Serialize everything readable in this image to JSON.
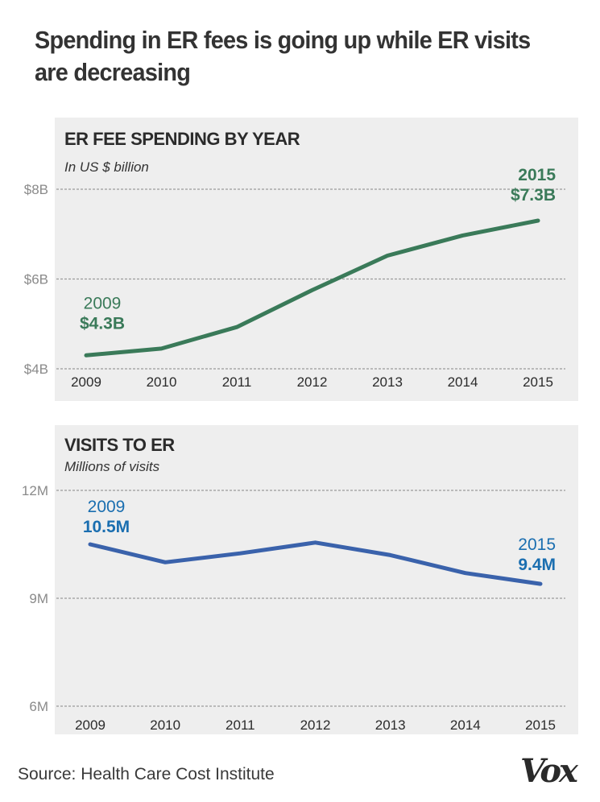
{
  "headline": "Spending in ER fees is going up while ER visits are decreasing",
  "source": "Source: Health Care Cost Institute",
  "logo": "Vox",
  "chart_data": [
    {
      "type": "line",
      "title": "ER FEE SPENDING BY YEAR",
      "subtitle": "In US $ billion",
      "xlabel": "",
      "ylabel": "",
      "x": [
        "2009",
        "2010",
        "2011",
        "2012",
        "2013",
        "2014",
        "2015"
      ],
      "series": [
        {
          "name": "ER fee spending",
          "values": [
            4.3,
            4.45,
            4.93,
            5.75,
            6.52,
            6.97,
            7.3
          ],
          "color": "#3a7a59"
        }
      ],
      "ylim": [
        4,
        8
      ],
      "yticks": [
        {
          "value": 8,
          "label": "$8B"
        },
        {
          "value": 6,
          "label": "$6B"
        },
        {
          "value": 4,
          "label": "$4B"
        }
      ],
      "grid": true,
      "annotations": [
        {
          "year": "2009",
          "line1": "2009",
          "line2": "$4.3B",
          "position": "above-left"
        },
        {
          "year": "2015",
          "line1": "2015",
          "line2": "$7.3B",
          "position": "above-right"
        }
      ],
      "annotation_color": "#3a7a59"
    },
    {
      "type": "line",
      "title": "VISITS TO ER",
      "subtitle": "Millions of visits",
      "xlabel": "",
      "ylabel": "",
      "x": [
        "2009",
        "2010",
        "2011",
        "2012",
        "2013",
        "2014",
        "2015"
      ],
      "series": [
        {
          "name": "ER visits",
          "values": [
            10.5,
            10.0,
            10.25,
            10.55,
            10.2,
            9.7,
            9.4
          ],
          "color": "#3a62ab"
        }
      ],
      "ylim": [
        6,
        12
      ],
      "yticks": [
        {
          "value": 12,
          "label": "12M"
        },
        {
          "value": 9,
          "label": "9M"
        },
        {
          "value": 6,
          "label": "6M"
        }
      ],
      "grid": true,
      "annotations": [
        {
          "year": "2009",
          "line1": "2009",
          "line2": "10.5M",
          "position": "above-left"
        },
        {
          "year": "2015",
          "line1": "2015",
          "line2": "9.4M",
          "position": "above-right"
        }
      ],
      "annotation_color": "#1a6eb0"
    }
  ]
}
